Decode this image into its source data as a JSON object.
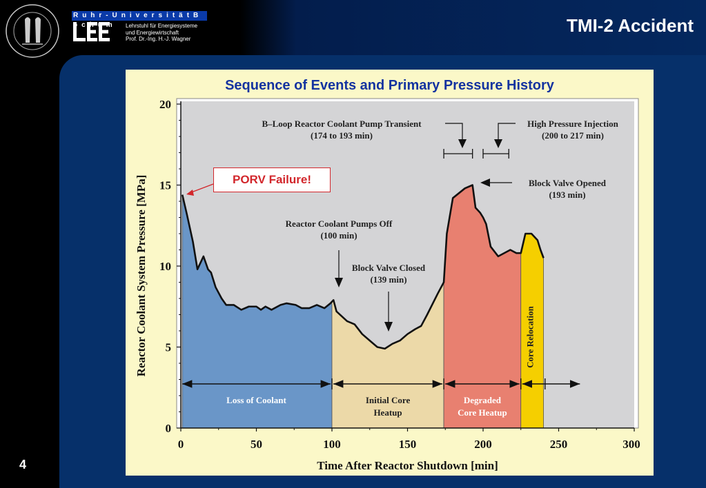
{
  "header": {
    "university": "R u h r - U n i v e r  s i t  ä  t   B o c h u m",
    "lee": "LEE",
    "chair_lines": [
      "Lehrstuhl für Energiesysteme",
      "und Energiewirtschaft",
      "Prof. Dr.-Ing. H.-J. Wagner"
    ],
    "slide_title": "TMI-2 Accident"
  },
  "footer": {
    "slide_number": "4"
  },
  "colors": {
    "loss": "#6a96c8",
    "initial": "#ecd9a8",
    "degraded": "#e88070",
    "relocation": "#f5cf00",
    "plot_bg": "#d4d4d6",
    "title_blue": "#1433a0",
    "callout_red": "#d2262b"
  },
  "chart_data": {
    "type": "area",
    "title": "Sequence of Events and Primary Pressure History",
    "xlabel": "Time After Reactor Shutdown [min]",
    "ylabel": "Reactor Coolant System Pressure [MPa]",
    "xlim": [
      0,
      300
    ],
    "ylim": [
      0,
      20
    ],
    "xticks": [
      "0",
      "50",
      "100",
      "150",
      "200",
      "250",
      "300"
    ],
    "yticks": [
      "0",
      "5",
      "10",
      "15",
      "20"
    ],
    "grid": false,
    "series": [
      {
        "x": [
          1,
          4,
          8,
          11,
          15,
          18,
          20,
          23,
          27,
          30,
          35,
          40,
          45,
          50,
          53,
          56,
          60,
          66,
          70,
          76,
          80,
          85,
          90,
          95,
          99,
          101,
          103,
          110,
          115,
          120,
          125,
          130,
          135,
          140,
          145,
          150,
          155,
          159,
          163,
          170,
          174,
          176,
          180,
          188,
          193,
          195,
          198,
          200,
          202,
          205,
          210,
          218,
          222,
          225,
          228,
          232,
          236,
          238,
          240
        ],
        "y": [
          14.4,
          13.2,
          11.5,
          9.8,
          10.6,
          9.8,
          9.6,
          8.7,
          8.0,
          7.6,
          7.6,
          7.3,
          7.5,
          7.5,
          7.3,
          7.5,
          7.3,
          7.6,
          7.7,
          7.6,
          7.4,
          7.4,
          7.6,
          7.4,
          7.7,
          7.9,
          7.2,
          6.6,
          6.4,
          5.8,
          5.4,
          5.0,
          4.9,
          5.2,
          5.4,
          5.8,
          6.1,
          6.3,
          7.0,
          8.3,
          9.0,
          12.0,
          14.2,
          14.8,
          15.0,
          13.6,
          13.3,
          13.0,
          12.6,
          11.2,
          10.6,
          11.0,
          10.8,
          10.8,
          12.0,
          12.0,
          11.6,
          11.0,
          10.5
        ]
      }
    ],
    "phases": [
      {
        "from": 0,
        "to": 100,
        "label": "Loss of Coolant"
      },
      {
        "from": 100,
        "to": 174,
        "label": "Initial Core\nHeatup"
      },
      {
        "from": 174,
        "to": 225,
        "label": "Degraded\nCore Heatup"
      },
      {
        "from": 225,
        "to": 241,
        "label": "Core Relocation"
      }
    ],
    "annotations": [
      {
        "text": "B–Loop Reactor Coolant Pump Transient\n(174 to 193 min)"
      },
      {
        "text": "High Pressure Injection\n(200 to 217 min)"
      },
      {
        "text": "Block Valve Opened\n(193 min)"
      },
      {
        "text": "Reactor Coolant Pumps Off\n(100 min)"
      },
      {
        "text": "Block Valve Closed\n(139 min)"
      }
    ],
    "callout": "PORV Failure!"
  }
}
